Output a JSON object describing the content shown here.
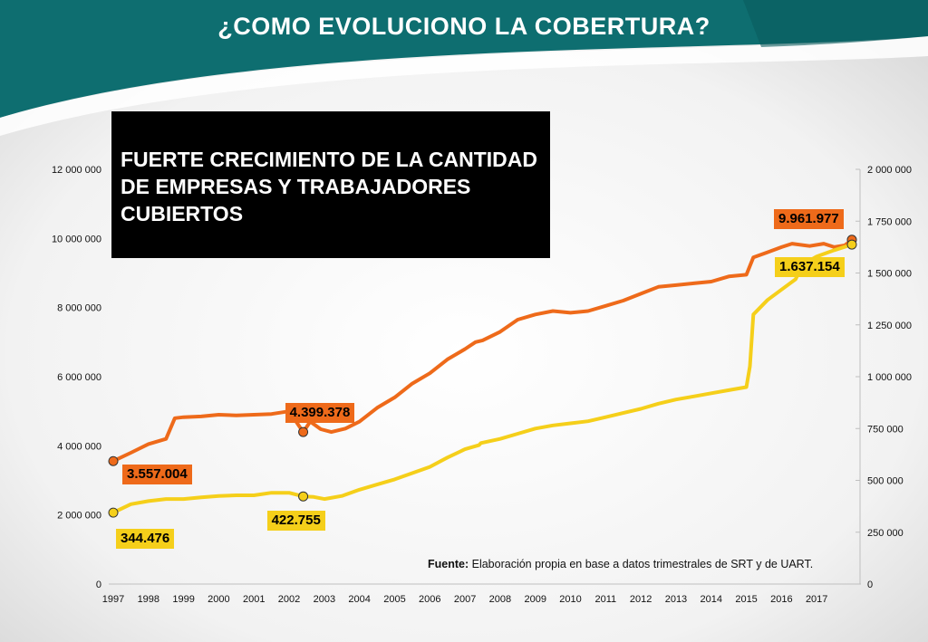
{
  "title": "¿COMO EVOLUCIONO LA COBERTURA?",
  "headline": "FUERTE CRECIMIENTO DE LA CANTIDAD DE EMPRESAS Y TRABAJADORES CUBIERTOS",
  "source": {
    "label": "Fuente:",
    "text": " Elaboración propia en base a datos trimestrales de SRT y de UART."
  },
  "colors": {
    "banner": "#0e6e70",
    "workers": "#ee6a1a",
    "companies": "#f5cf1a",
    "headline_bg": "#000000"
  },
  "chart_data": {
    "type": "line",
    "x_ticks": [
      "1997",
      "1998",
      "1999",
      "2000",
      "2001",
      "2002",
      "2003",
      "2004",
      "2005",
      "2006",
      "2007",
      "2008",
      "2009",
      "2010",
      "2011",
      "2012",
      "2013",
      "2014",
      "2015",
      "2016",
      "2017"
    ],
    "y_left": {
      "lim": [
        0,
        12000000
      ],
      "ticks": [
        "0",
        "2 000 000",
        "4 000 000",
        "6 000 000",
        "8 000 000",
        "10 000 000",
        "12 000 000"
      ]
    },
    "y_right": {
      "lim": [
        0,
        2000000
      ],
      "ticks": [
        "0",
        "250 000",
        "500 000",
        "750 000",
        "1 000 000",
        "1 250 000",
        "1 500 000",
        "1 750 000",
        "2 000 000"
      ]
    },
    "grid": false,
    "series": [
      {
        "axis": "left",
        "color": "#ee6a1a",
        "points": [
          [
            1997.0,
            3557004
          ],
          [
            1997.5,
            3800000
          ],
          [
            1998.0,
            4050000
          ],
          [
            1998.5,
            4200000
          ],
          [
            1998.75,
            4800000
          ],
          [
            1999.0,
            4830000
          ],
          [
            1999.5,
            4850000
          ],
          [
            2000.0,
            4900000
          ],
          [
            2000.5,
            4880000
          ],
          [
            2001.0,
            4900000
          ],
          [
            2001.5,
            4920000
          ],
          [
            2002.0,
            5000000
          ],
          [
            2002.4,
            4399378
          ],
          [
            2002.6,
            4700000
          ],
          [
            2002.9,
            4480000
          ],
          [
            2003.2,
            4400000
          ],
          [
            2003.6,
            4500000
          ],
          [
            2004.0,
            4700000
          ],
          [
            2004.5,
            5100000
          ],
          [
            2005.0,
            5400000
          ],
          [
            2005.5,
            5800000
          ],
          [
            2006.0,
            6100000
          ],
          [
            2006.5,
            6500000
          ],
          [
            2007.0,
            6800000
          ],
          [
            2007.3,
            7000000
          ],
          [
            2007.5,
            7050000
          ],
          [
            2008.0,
            7300000
          ],
          [
            2008.5,
            7650000
          ],
          [
            2009.0,
            7800000
          ],
          [
            2009.5,
            7900000
          ],
          [
            2010.0,
            7850000
          ],
          [
            2010.5,
            7900000
          ],
          [
            2011.0,
            8050000
          ],
          [
            2011.5,
            8200000
          ],
          [
            2012.0,
            8400000
          ],
          [
            2012.5,
            8600000
          ],
          [
            2013.0,
            8650000
          ],
          [
            2013.5,
            8700000
          ],
          [
            2014.0,
            8750000
          ],
          [
            2014.5,
            8900000
          ],
          [
            2015.0,
            8950000
          ],
          [
            2015.2,
            9450000
          ],
          [
            2015.6,
            9600000
          ],
          [
            2016.0,
            9750000
          ],
          [
            2016.3,
            9850000
          ],
          [
            2016.8,
            9780000
          ],
          [
            2017.2,
            9850000
          ],
          [
            2017.5,
            9750000
          ],
          [
            2017.8,
            9800000
          ],
          [
            2018.0,
            9961977
          ]
        ]
      },
      {
        "axis": "right",
        "color": "#f5cf1a",
        "points": [
          [
            1997.0,
            344476
          ],
          [
            1997.5,
            385000
          ],
          [
            1998.0,
            400000
          ],
          [
            1998.5,
            410000
          ],
          [
            1999.0,
            410000
          ],
          [
            1999.5,
            418000
          ],
          [
            2000.0,
            425000
          ],
          [
            2000.5,
            428000
          ],
          [
            2001.0,
            428000
          ],
          [
            2001.5,
            440000
          ],
          [
            2002.0,
            440000
          ],
          [
            2002.4,
            422755
          ],
          [
            2002.7,
            420000
          ],
          [
            2003.0,
            410000
          ],
          [
            2003.5,
            425000
          ],
          [
            2004.0,
            455000
          ],
          [
            2004.5,
            480000
          ],
          [
            2005.0,
            505000
          ],
          [
            2005.5,
            535000
          ],
          [
            2006.0,
            565000
          ],
          [
            2006.5,
            610000
          ],
          [
            2007.0,
            650000
          ],
          [
            2007.4,
            670000
          ],
          [
            2007.45,
            680000
          ],
          [
            2008.0,
            700000
          ],
          [
            2008.5,
            725000
          ],
          [
            2009.0,
            750000
          ],
          [
            2009.5,
            765000
          ],
          [
            2010.0,
            775000
          ],
          [
            2010.5,
            785000
          ],
          [
            2011.0,
            805000
          ],
          [
            2011.5,
            825000
          ],
          [
            2012.0,
            845000
          ],
          [
            2012.5,
            870000
          ],
          [
            2013.0,
            890000
          ],
          [
            2013.5,
            905000
          ],
          [
            2014.0,
            920000
          ],
          [
            2014.5,
            935000
          ],
          [
            2015.0,
            950000
          ],
          [
            2015.1,
            1050000
          ],
          [
            2015.2,
            1300000
          ],
          [
            2015.6,
            1370000
          ],
          [
            2016.0,
            1420000
          ],
          [
            2016.4,
            1470000
          ],
          [
            2016.6,
            1540000
          ],
          [
            2017.0,
            1580000
          ],
          [
            2017.5,
            1610000
          ],
          [
            2018.0,
            1637154
          ]
        ]
      }
    ],
    "annotations": [
      {
        "label": "3.557.004",
        "series": 0,
        "x": 1997.0,
        "y": 3557004
      },
      {
        "label": "4.399.378",
        "series": 0,
        "x": 2002.4,
        "y": 4399378
      },
      {
        "label": "9.961.977",
        "series": 0,
        "x": 2018.0,
        "y": 9961977
      },
      {
        "label": "344.476",
        "series": 1,
        "x": 1997.0,
        "y": 344476
      },
      {
        "label": "422.755",
        "series": 1,
        "x": 2002.4,
        "y": 422755
      },
      {
        "label": "1.637.154",
        "series": 1,
        "x": 2018.0,
        "y": 1637154
      }
    ]
  }
}
